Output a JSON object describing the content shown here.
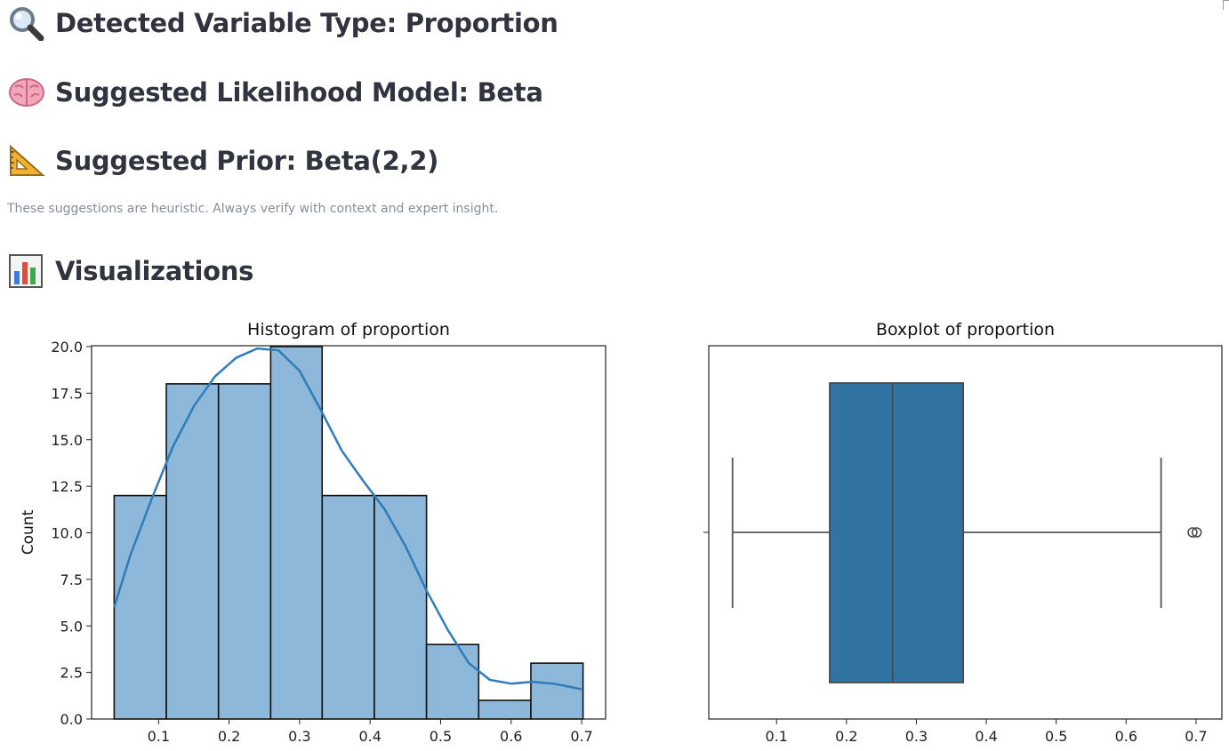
{
  "headings": {
    "detected": "Detected Variable Type: Proportion",
    "likelihood": "Suggested Likelihood Model: Beta",
    "prior": "Suggested Prior: Beta(2,2)",
    "visualizations": "Visualizations"
  },
  "icons": {
    "detected": "magnifying-glass-icon",
    "likelihood": "brain-icon",
    "prior": "triangular-ruler-icon",
    "visualizations": "bar-chart-icon"
  },
  "caption": "These suggestions are heuristic. Always verify with context and expert insight.",
  "chart_data": [
    {
      "type": "bar",
      "title": "Histogram of proportion",
      "xlabel": "",
      "ylabel": "Count",
      "bin_edges": [
        0.037,
        0.111,
        0.185,
        0.259,
        0.332,
        0.406,
        0.48,
        0.554,
        0.628,
        0.702
      ],
      "values": [
        12,
        18,
        18,
        20,
        12,
        12,
        4,
        1,
        3
      ],
      "kde": {
        "x": [
          0.037,
          0.06,
          0.09,
          0.12,
          0.15,
          0.18,
          0.21,
          0.24,
          0.27,
          0.3,
          0.33,
          0.36,
          0.39,
          0.42,
          0.45,
          0.48,
          0.51,
          0.54,
          0.57,
          0.6,
          0.63,
          0.66,
          0.7
        ],
        "y": [
          6.0,
          8.8,
          11.8,
          14.6,
          16.8,
          18.4,
          19.4,
          19.9,
          19.8,
          18.7,
          16.6,
          14.4,
          12.8,
          11.3,
          9.3,
          6.9,
          4.8,
          3.0,
          2.1,
          1.9,
          2.0,
          1.9,
          1.6
        ]
      },
      "xticks": [
        "0.1",
        "0.2",
        "0.3",
        "0.4",
        "0.5",
        "0.6",
        "0.7"
      ],
      "xtick_values": [
        0.1,
        0.2,
        0.3,
        0.4,
        0.5,
        0.6,
        0.7
      ],
      "yticks": [
        "0.0",
        "2.5",
        "5.0",
        "7.5",
        "10.0",
        "12.5",
        "15.0",
        "17.5",
        "20.0"
      ],
      "ytick_values": [
        0,
        2.5,
        5,
        7.5,
        10,
        12.5,
        15,
        17.5,
        20
      ],
      "xlim": [
        0.005,
        0.734
      ],
      "ylim": [
        0,
        20.0
      ],
      "bar_color": "#8db8da",
      "line_color": "#2f7db8"
    },
    {
      "type": "box",
      "title": "Boxplot of proportion",
      "whisker_low": 0.037,
      "q1": 0.176,
      "median": 0.266,
      "q3": 0.367,
      "whisker_high": 0.65,
      "outliers": [
        0.695,
        0.701
      ],
      "xticks": [
        "0.1",
        "0.2",
        "0.3",
        "0.4",
        "0.5",
        "0.6",
        "0.7"
      ],
      "xtick_values": [
        0.1,
        0.2,
        0.3,
        0.4,
        0.5,
        0.6,
        0.7
      ],
      "xlim": [
        0.003,
        0.737
      ],
      "box_color": "#3274a1"
    }
  ]
}
